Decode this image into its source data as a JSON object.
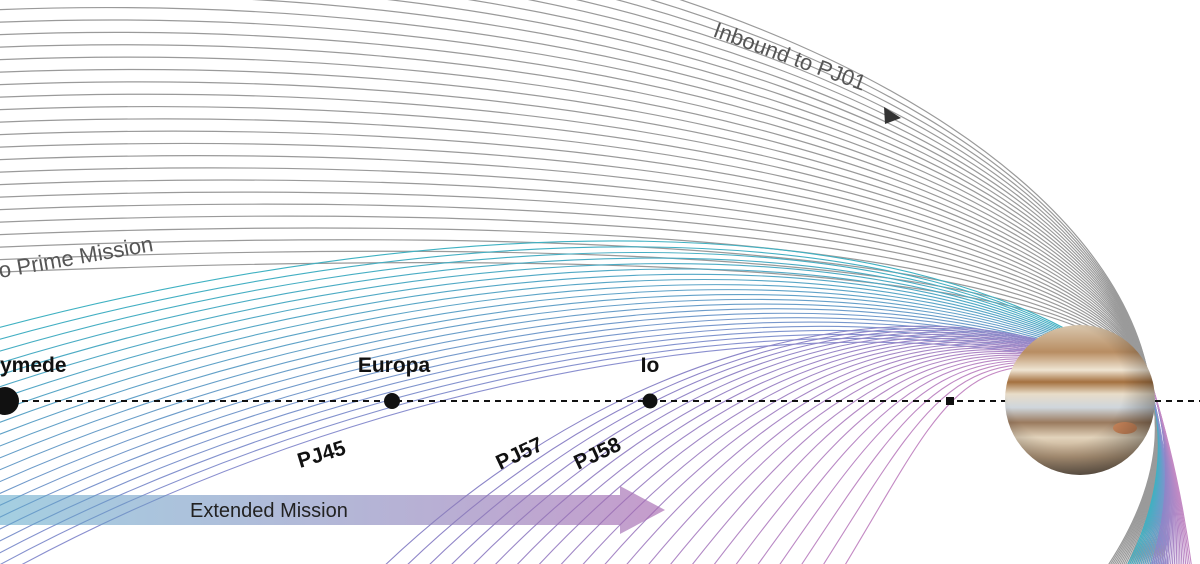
{
  "labels": {
    "inbound": "Inbound to PJ01",
    "prime": "o Prime Mission",
    "ganymede": "ymede",
    "europa": "Europa",
    "io": "Io",
    "pj45": "PJ45",
    "pj57": "PJ57",
    "pj58": "PJ58",
    "extended": "Extended Mission"
  }
}
